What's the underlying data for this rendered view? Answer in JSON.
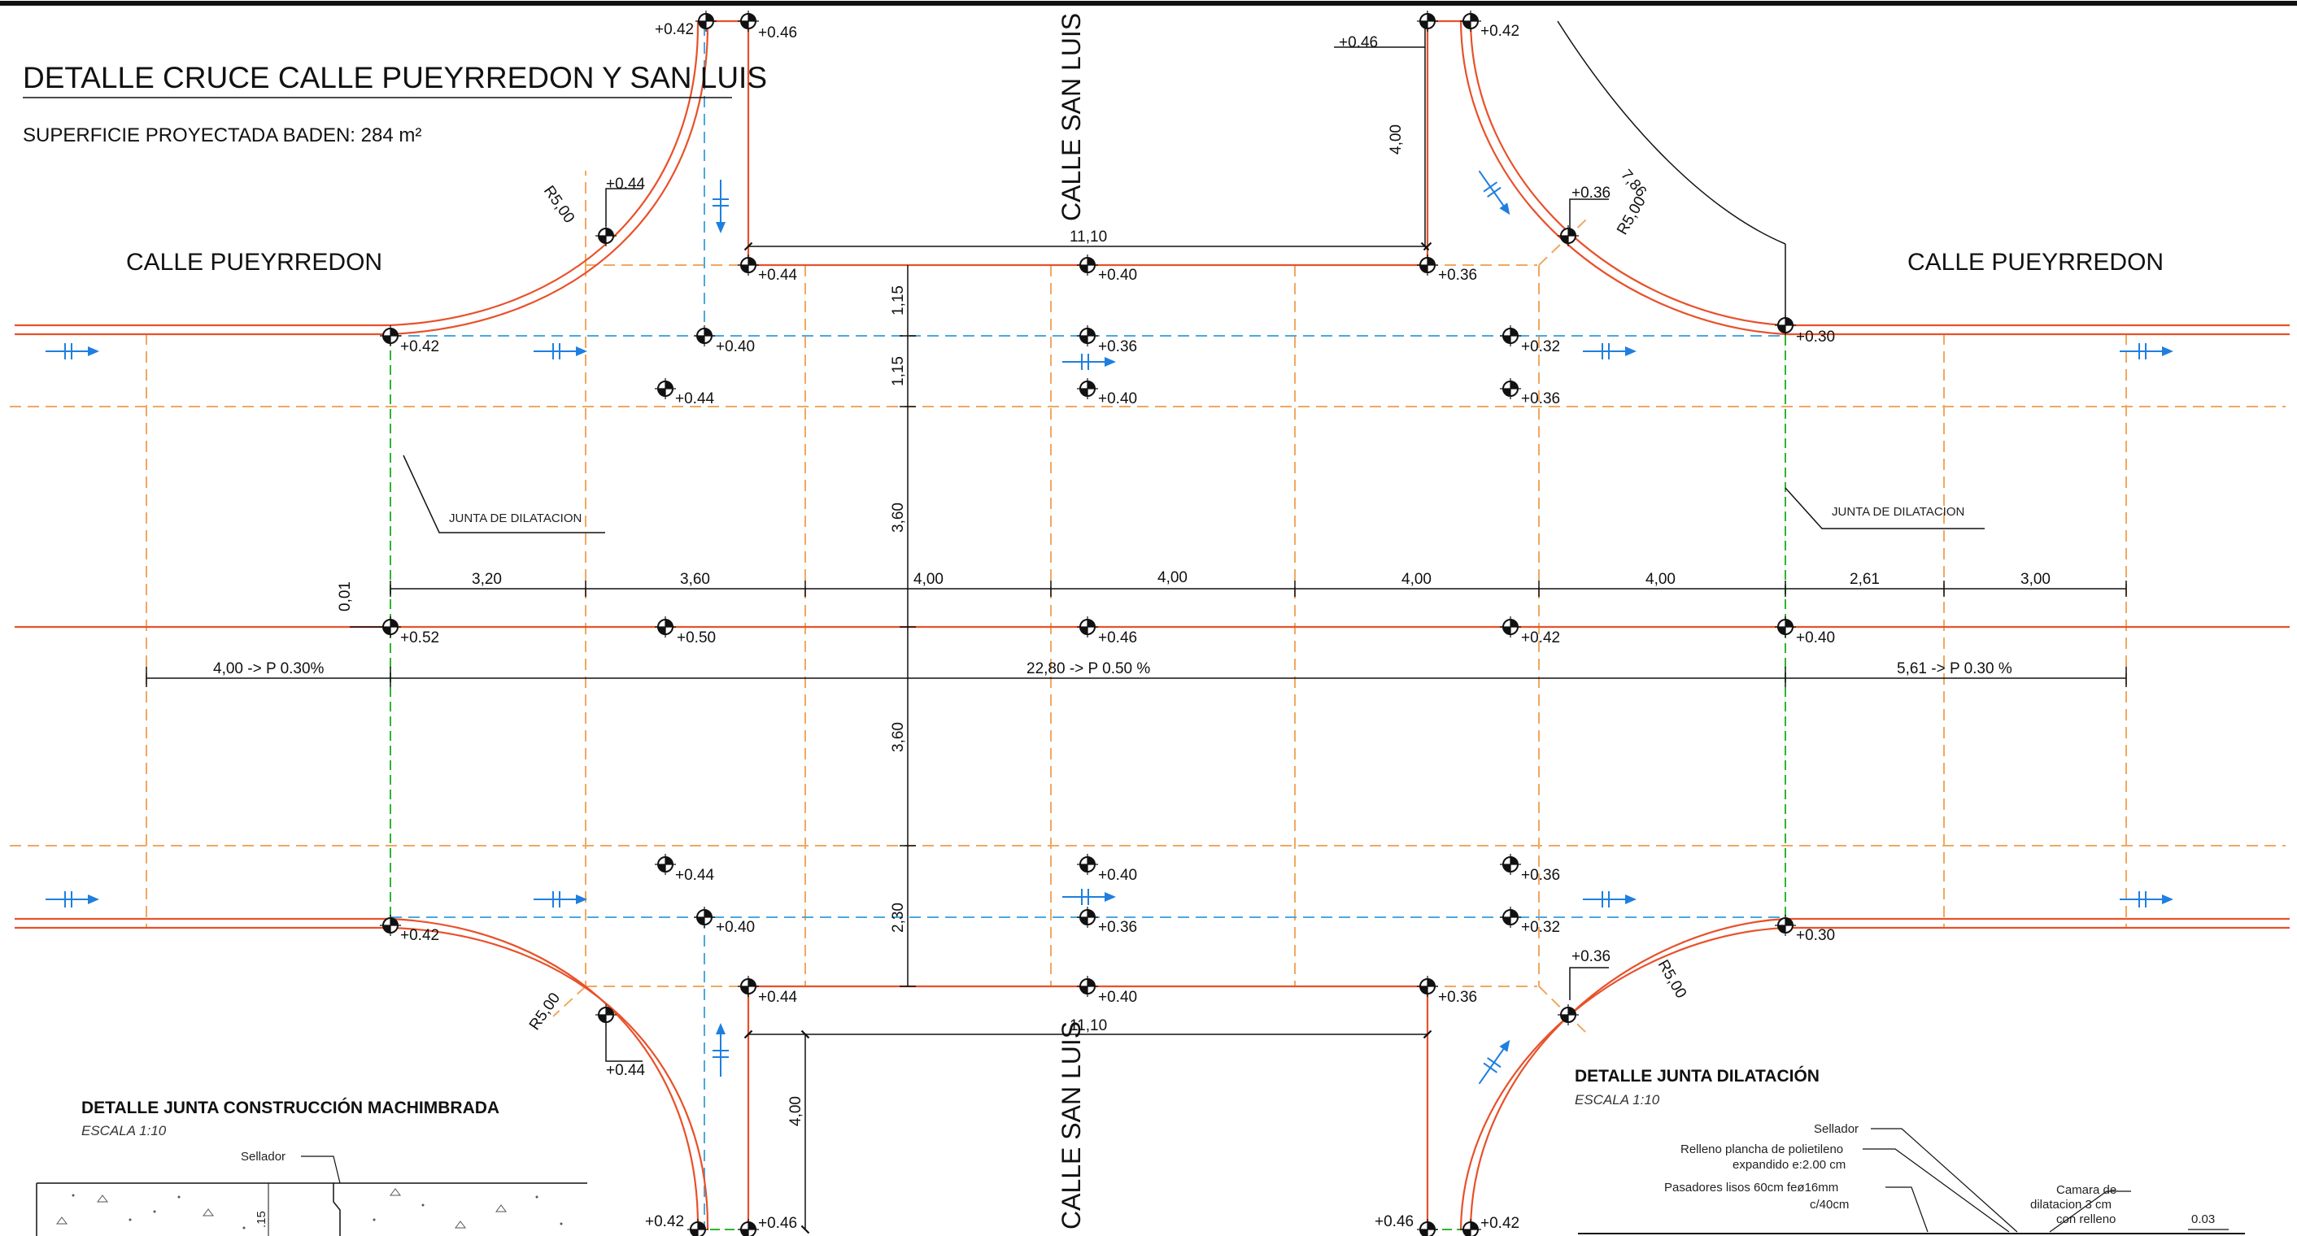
{
  "drawing": {
    "title": "DETALLE CRUCE CALLE PUEYRREDON Y SAN LUIS",
    "surface_label": "SUPERFICIE PROYECTADA BADEN: 284 m²"
  },
  "streets": {
    "west": "CALLE PUEYRREDON",
    "east": "CALLE PUEYRREDON",
    "north": "CALLE SAN LUIS",
    "south": "CALLE SAN LUIS"
  },
  "joint_labels": {
    "left": "JUNTA DE DILATACION",
    "right": "JUNTA DE DILATACION"
  },
  "elevations": {
    "n_l_out": "+0.42",
    "n_l_in": "+0.46",
    "n_r_out": "+0.46",
    "n_r_in": "+0.42",
    "curb_nw": "+0.44",
    "curb_ne": "+0.36",
    "ew_a": "+0.44",
    "ew_b": "+0.40",
    "ew_c": "+0.36",
    "row1_a": "+0.42",
    "row1_b": "+0.40",
    "row1_c": "+0.36",
    "row1_d": "+0.32",
    "row1_e": "+0.30",
    "row2_a": "+0.44",
    "row2_b": "+0.40",
    "row2_c": "+0.36",
    "c_a": "+0.52",
    "c_b": "+0.50",
    "c_c": "+0.46",
    "c_d": "+0.42",
    "c_e": "+0.40",
    "row4_a": "+0.44",
    "row4_b": "+0.40",
    "row4_c": "+0.36",
    "row5_a": "+0.42",
    "row5_b": "+0.40",
    "row5_c": "+0.36",
    "row5_d": "+0.32",
    "row5_e": "+0.30",
    "sw_a": "+0.44",
    "sw_b": "+0.40",
    "sw_c": "+0.36",
    "curb_sw": "+0.44",
    "curb_se": "+0.36",
    "s_l_out": "+0.42",
    "s_l_in": "+0.46",
    "s_r_out": "+0.46",
    "s_r_in": "+0.42"
  },
  "dimensions": {
    "h_top": "11,10",
    "h_bot": "11,10",
    "v_top": "4,00",
    "v_bot": "4,00",
    "v_115a": "1,15",
    "v_115b": "1,15",
    "v_360a": "3,60",
    "v_360b": "3,60",
    "v_230": "2,30",
    "d_001": "0,01",
    "seg1": "3,20",
    "seg2": "3,60",
    "seg3": "4,00",
    "seg4": "4,00",
    "seg5": "4,00",
    "seg6": "4,00",
    "seg7": "2,61",
    "seg8": "3,00",
    "slope_w": "4,00 -> P 0.30%",
    "slope_c": "22,80 -> P 0.50 %",
    "slope_e": "5,61 -> P 0.30 %",
    "radius_nw": "R5,00",
    "radius_ne": "R5,00",
    "radius_sw": "R5,00",
    "radius_se": "R5,00",
    "arc_len": "7,86"
  },
  "details": {
    "machimbrada_title": "DETALLE JUNTA CONSTRUCCIÓN MACHIMBRADA",
    "machimbrada_scale": "ESCALA  1:10",
    "sellador_left": "Sellador",
    "depth_15": ".15",
    "dilatacion_title": "DETALLE JUNTA DILATACIÓN",
    "dilatacion_scale": "ESCALA  1:10",
    "sellador_right": "Sellador",
    "relleno_1": "Relleno  plancha  de  polietileno",
    "relleno_2": "expandido  e:2.00  cm",
    "pasadores_1": "Pasadores  lisos  60cm  feø16mm",
    "pasadores_2": "c/40cm",
    "camara_1": "Camara  de",
    "camara_2": "dilatacion  3  cm",
    "camara_3": "con  relleno",
    "dim_003": "0.03"
  },
  "colors": {
    "curb_red": "#e8512a",
    "grid_orange": "#f0a860",
    "drain_blue": "#4aa8e0",
    "arrow_blue": "#1e7fe0",
    "joint_green": "#2fb52f",
    "line_black": "#111111"
  }
}
